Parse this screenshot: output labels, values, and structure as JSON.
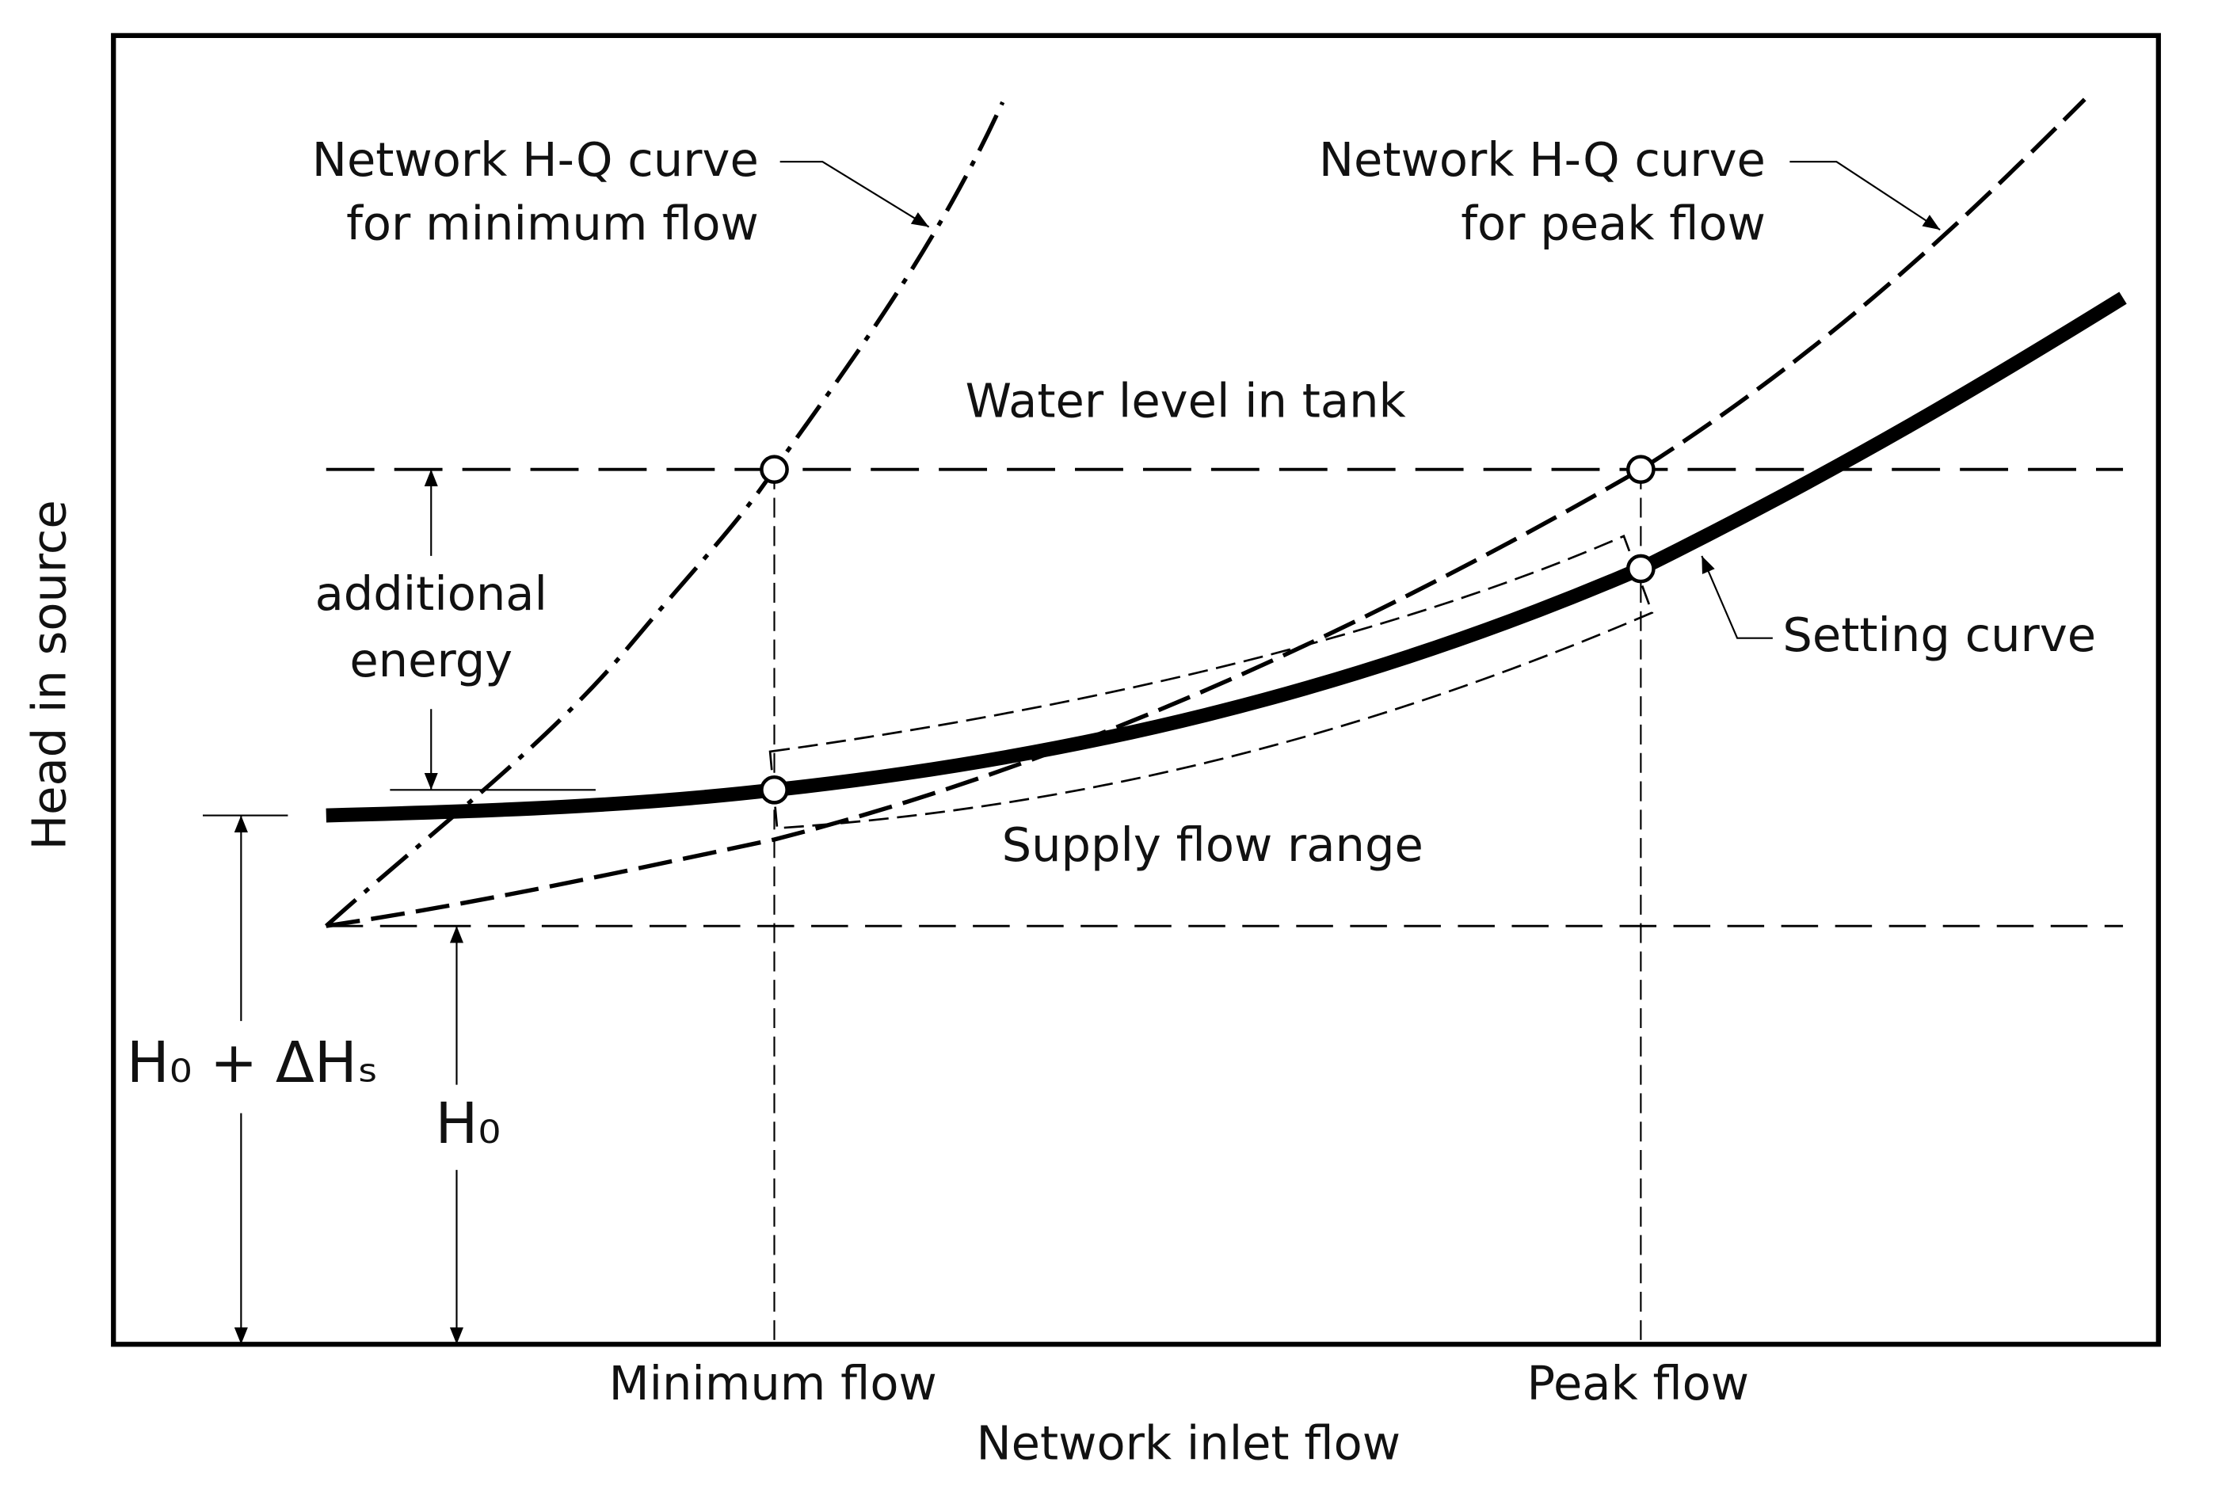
{
  "axes": {
    "y_label": "Head in source",
    "x_label": "Network inlet flow",
    "x_marks": [
      "Minimum flow",
      "Peak flow"
    ]
  },
  "labels": {
    "min_curve": [
      "Network H-Q curve",
      "for minimum flow"
    ],
    "peak_curve": [
      "Network H-Q curve",
      "for peak flow"
    ],
    "tank": "Water level in tank",
    "additional_energy": [
      "additional",
      "energy"
    ],
    "setting_curve": "Setting curve",
    "supply_range": "Supply flow range",
    "h0_dhs": "H₀ + ΔHₛ",
    "h0": "H₀"
  }
}
